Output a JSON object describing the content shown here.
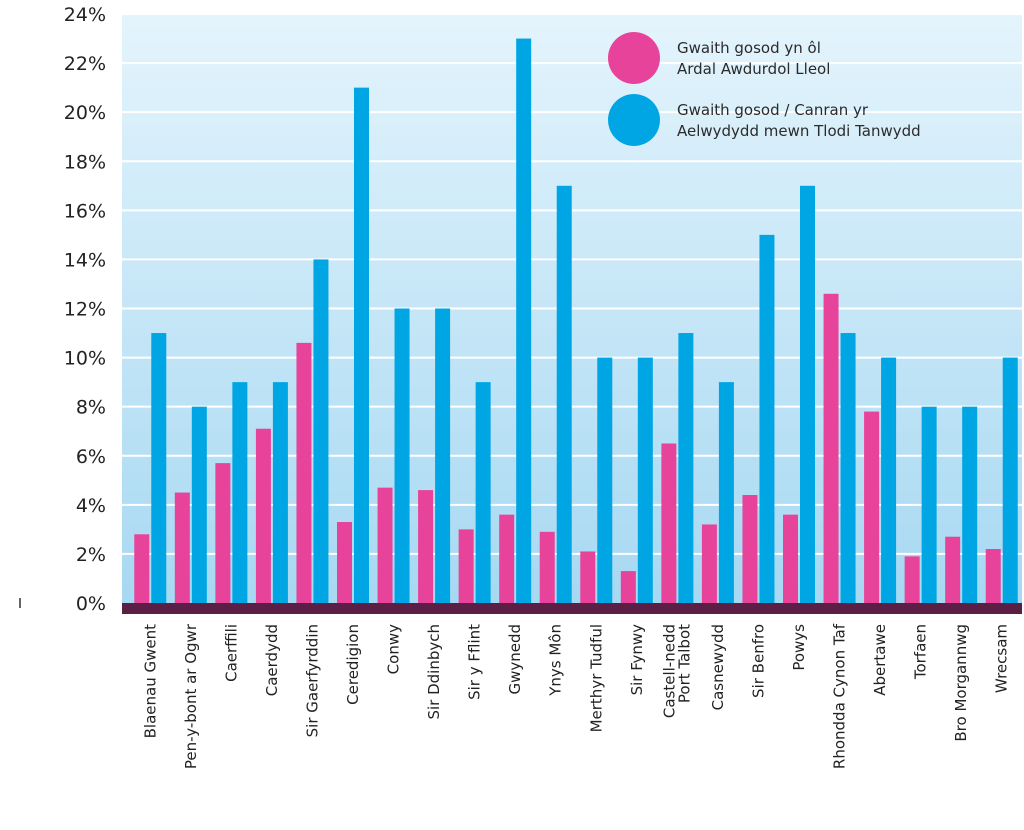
{
  "chart_data": {
    "type": "bar",
    "categories": [
      "Blaenau Gwent",
      "Pen-y-bont ar Ogwr",
      "Caerffili",
      "Caerdydd",
      "Sir Gaerfyrddin",
      "Ceredigion",
      "Conwy",
      "Sir Ddinbych",
      "Sir y Fflint",
      "Gwynedd",
      "Ynys Môn",
      "Merthyr Tudful",
      "Sir Fynwy",
      "Castell-nedd Port Talbot",
      "Casnewydd",
      "Sir Benfro",
      "Powys",
      "Rhondda Cynon Taf",
      "Abertawe",
      "Torfaen",
      "Bro Morgannwg",
      "Wrecsam"
    ],
    "series": [
      {
        "name": "Gwaith gosod yn ôl Ardal Awdurdol Lleol",
        "color": "#e8439a",
        "values": [
          2.8,
          4.5,
          5.7,
          7.1,
          10.6,
          3.3,
          4.7,
          4.6,
          3.0,
          3.6,
          2.9,
          2.1,
          1.3,
          6.5,
          3.2,
          4.4,
          3.6,
          12.6,
          7.8,
          1.9,
          2.7,
          2.2
        ]
      },
      {
        "name": "Gwaith gosod / Canran yr Aelwydydd mewn Tlodi Tanwydd",
        "color": "#00a6e3",
        "values": [
          11,
          8,
          9,
          9,
          14,
          21,
          12,
          12,
          9,
          23,
          17,
          10,
          10,
          11,
          9,
          15,
          17,
          11,
          10,
          8,
          8,
          10
        ]
      }
    ],
    "y_ticks": [
      "0%",
      "2%",
      "4%",
      "6%",
      "8%",
      "10%",
      "12%",
      "14%",
      "16%",
      "18%",
      "20%",
      "22%",
      "24%"
    ],
    "ylim": [
      0,
      24
    ],
    "grid": true,
    "legend_position": "top-right",
    "colors": {
      "background_top": "#e4f4fc",
      "background_bottom": "#a6d8f2",
      "gridline": "#ffffff",
      "baseline": "#5b1f45"
    }
  }
}
